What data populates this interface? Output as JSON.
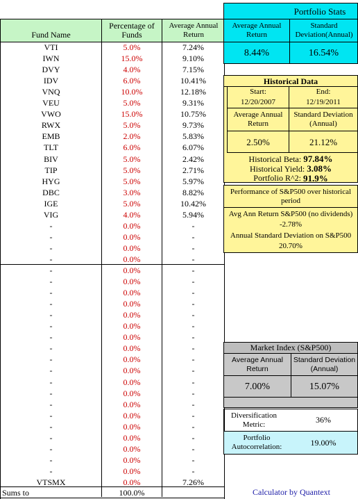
{
  "table": {
    "headers": {
      "fund_name": "Fund Name",
      "percentage": "Percentage of Funds",
      "avg_return": "Average Annual Return"
    },
    "rows": [
      {
        "fund": "VTI",
        "pct": "5.0%",
        "ret": "7.24%"
      },
      {
        "fund": "IWN",
        "pct": "15.0%",
        "ret": "9.10%"
      },
      {
        "fund": "DVY",
        "pct": "4.0%",
        "ret": "7.15%"
      },
      {
        "fund": "IDV",
        "pct": "6.0%",
        "ret": "10.41%"
      },
      {
        "fund": "VNQ",
        "pct": "10.0%",
        "ret": "12.18%"
      },
      {
        "fund": "VEU",
        "pct": "5.0%",
        "ret": "9.31%"
      },
      {
        "fund": "VWO",
        "pct": "15.0%",
        "ret": "10.75%"
      },
      {
        "fund": "RWX",
        "pct": "5.0%",
        "ret": "9.73%"
      },
      {
        "fund": "EMB",
        "pct": "2.0%",
        "ret": "5.83%"
      },
      {
        "fund": "TLT",
        "pct": "6.0%",
        "ret": "6.07%"
      },
      {
        "fund": "BIV",
        "pct": "5.0%",
        "ret": "2.42%"
      },
      {
        "fund": "TIP",
        "pct": "5.0%",
        "ret": "2.71%"
      },
      {
        "fund": "HYG",
        "pct": "5.0%",
        "ret": "5.97%"
      },
      {
        "fund": "DBC",
        "pct": "3.0%",
        "ret": "8.82%"
      },
      {
        "fund": "IGE",
        "pct": "5.0%",
        "ret": "10.42%"
      },
      {
        "fund": "VIG",
        "pct": "4.0%",
        "ret": "5.94%"
      },
      {
        "fund": "-",
        "pct": "0.0%",
        "ret": "-"
      },
      {
        "fund": "-",
        "pct": "0.0%",
        "ret": "-"
      },
      {
        "fund": "-",
        "pct": "0.0%",
        "ret": "-"
      },
      {
        "fund": "-",
        "pct": "0.0%",
        "ret": "-"
      },
      {
        "fund": "-",
        "pct": "0.0%",
        "ret": "-"
      },
      {
        "fund": "-",
        "pct": "0.0%",
        "ret": "-"
      },
      {
        "fund": "-",
        "pct": "0.0%",
        "ret": "-"
      },
      {
        "fund": "-",
        "pct": "0.0%",
        "ret": "-"
      },
      {
        "fund": "-",
        "pct": "0.0%",
        "ret": "-"
      },
      {
        "fund": "-",
        "pct": "0.0%",
        "ret": "-"
      },
      {
        "fund": "-",
        "pct": "0.0%",
        "ret": "-"
      },
      {
        "fund": "-",
        "pct": "0.0%",
        "ret": "-"
      },
      {
        "fund": "-",
        "pct": "0.0%",
        "ret": "-"
      },
      {
        "fund": "-",
        "pct": "0.0%",
        "ret": "-"
      },
      {
        "fund": "-",
        "pct": "0.0%",
        "ret": "-"
      },
      {
        "fund": "-",
        "pct": "0.0%",
        "ret": "-"
      },
      {
        "fund": "-",
        "pct": "0.0%",
        "ret": "-"
      },
      {
        "fund": "-",
        "pct": "0.0%",
        "ret": "-"
      },
      {
        "fund": "-",
        "pct": "0.0%",
        "ret": "-"
      },
      {
        "fund": "-",
        "pct": "0.0%",
        "ret": "-"
      },
      {
        "fund": "-",
        "pct": "0.0%",
        "ret": "-"
      },
      {
        "fund": "-",
        "pct": "0.0%",
        "ret": "-"
      },
      {
        "fund": "-",
        "pct": "0.0%",
        "ret": "-"
      },
      {
        "fund": "VTSMX",
        "pct": "0.0%",
        "ret": "7.26%"
      }
    ],
    "sums_label": "Sums to",
    "sums_value": "100.0%"
  },
  "portfolio_stats": {
    "title": "Portfolio Stats",
    "avg_label": "Average Annual Return",
    "std_label": "Standard Deviation(Annual)",
    "avg_value": "8.44%",
    "std_value": "16.54%"
  },
  "historical": {
    "title": "Historical Data",
    "start_label": "Start:",
    "start_value": "12/20/2007",
    "end_label": "End:",
    "end_value": "12/19/2011",
    "avg_label": "Average Annual Return",
    "std_label": "Standard Deviation (Annual)",
    "avg_value": "2.50%",
    "std_value": "21.12%",
    "beta_label": "Historical Beta:",
    "beta_value": "97.84%",
    "yield_label": "Historical Yield:",
    "yield_value": "3.08%",
    "r2_label": "Portfolio R^2:",
    "r2_value": "91.9%"
  },
  "sp500": {
    "perf_title": "Performance of S&P500 over historical period",
    "avg_line": "Avg Ann Return S&P500 (no dividends)",
    "avg_value": "-2.78%",
    "std_line": "Annual Standard Deviation on S&P500",
    "std_value": "20.70%"
  },
  "market_index": {
    "title": "Market Index (S&P500)",
    "avg_label": "Average Annual Return",
    "std_label": "Standard Deviation (Annual)",
    "avg_value": "7.00%",
    "std_value": "15.07%"
  },
  "diversification": {
    "label": "Diversification Metric:",
    "value": "36%"
  },
  "autocorrelation": {
    "label": "Portfolio Autocorrelation:",
    "value": "19.00%"
  },
  "footer": {
    "credit": "Calculator by Quantext"
  },
  "colors": {
    "header_green": "#c6f5c6",
    "cyan": "#00e5f2",
    "yellow": "#fff59a",
    "grey": "#c8c8c8",
    "red": "#cc0000",
    "link_blue": "#1a1aa6"
  }
}
